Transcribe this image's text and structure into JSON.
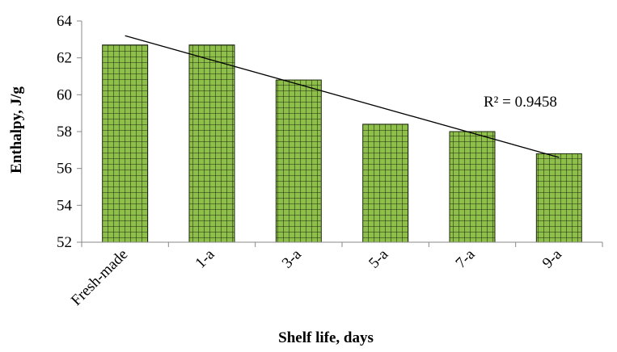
{
  "chart_data": {
    "type": "bar",
    "categories": [
      "Fresh-made",
      "1-a",
      "3-a",
      "5-a",
      "7-a",
      "9-a"
    ],
    "values": [
      62.7,
      62.7,
      60.8,
      58.4,
      58.0,
      56.8
    ],
    "xlabel": "Shelf life, days",
    "ylabel": "Enthalpy, J/g",
    "ylim": [
      52,
      64
    ],
    "yticks": [
      52,
      54,
      56,
      58,
      60,
      62,
      64
    ],
    "grid": false,
    "bar_color": "#8DBF4A",
    "bar_pattern_color": "#1E2A10",
    "trendline": {
      "type": "linear",
      "start_value": 63.2,
      "end_value": 56.6,
      "r_squared_label": "R² = 0.9458"
    }
  }
}
